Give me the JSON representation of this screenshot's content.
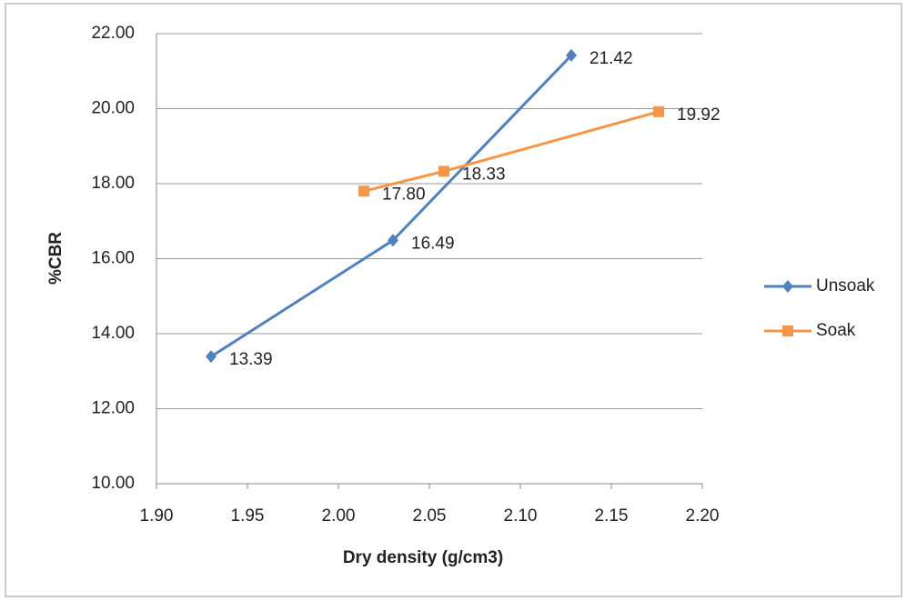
{
  "chart_data": {
    "type": "line",
    "x_label": "Dry density (g/cm3)",
    "y_label": "%CBR",
    "xlim": [
      1.9,
      2.2
    ],
    "xticks": [
      {
        "value": 1.9,
        "label": "1.90"
      },
      {
        "value": 1.95,
        "label": "1.95"
      },
      {
        "value": 2.0,
        "label": "2.00"
      },
      {
        "value": 2.05,
        "label": "2.05"
      },
      {
        "value": 2.1,
        "label": "2.10"
      },
      {
        "value": 2.15,
        "label": "2.15"
      },
      {
        "value": 2.2,
        "label": "2.20"
      }
    ],
    "ylim": [
      10,
      22
    ],
    "yticks": [
      {
        "value": 10,
        "label": "10.00"
      },
      {
        "value": 12,
        "label": "12.00"
      },
      {
        "value": 14,
        "label": "14.00"
      },
      {
        "value": 16,
        "label": "16.00"
      },
      {
        "value": 18,
        "label": "18.00"
      },
      {
        "value": 20,
        "label": "20.00"
      },
      {
        "value": 22,
        "label": "22.00"
      }
    ],
    "grid": true,
    "legend": "right",
    "series": [
      {
        "name": "Unsoak",
        "color": "#4f81bd",
        "marker": "diamond",
        "x": [
          1.93,
          2.03,
          2.128
        ],
        "values": [
          13.39,
          16.49,
          21.42
        ],
        "value_labels": [
          "13.39",
          "16.49",
          "21.42"
        ]
      },
      {
        "name": "Soak",
        "color": "#f79646",
        "marker": "square",
        "x": [
          2.014,
          2.058,
          2.176
        ],
        "values": [
          17.8,
          18.33,
          19.92
        ],
        "value_labels": [
          "17.80",
          "18.33",
          "19.92"
        ]
      }
    ]
  }
}
